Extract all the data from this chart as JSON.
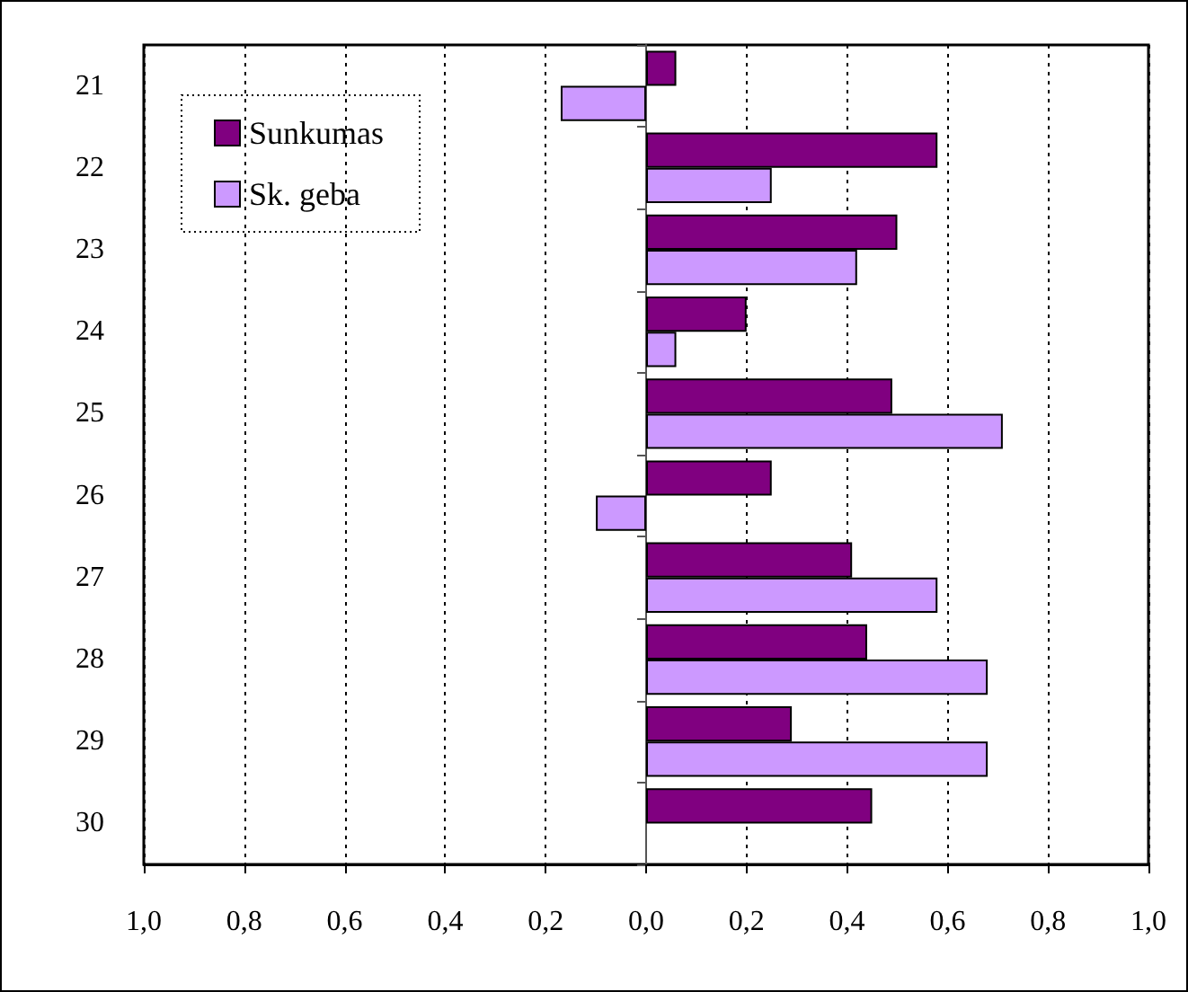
{
  "chart_data": {
    "type": "bar",
    "orientation": "horizontal",
    "categories": [
      "21",
      "22",
      "23",
      "24",
      "25",
      "26",
      "27",
      "28",
      "29",
      "30"
    ],
    "series": [
      {
        "name": "Sunkumas",
        "color": "#800080",
        "values": [
          0.06,
          0.58,
          0.5,
          0.2,
          0.49,
          0.25,
          0.41,
          0.44,
          0.29,
          0.45
        ]
      },
      {
        "name": "Sk. geba",
        "color": "#cc99ff",
        "values": [
          -0.17,
          0.25,
          0.42,
          0.06,
          0.71,
          -0.1,
          0.58,
          0.68,
          0.68,
          null
        ]
      }
    ],
    "xlim": [
      -1,
      1
    ],
    "xticks": [
      {
        "value": -1,
        "label": "1,0"
      },
      {
        "value": -0.8,
        "label": "0,8"
      },
      {
        "value": -0.6,
        "label": "0,6"
      },
      {
        "value": -0.4,
        "label": "0,4"
      },
      {
        "value": -0.2,
        "label": "0,2"
      },
      {
        "value": 0,
        "label": "0,0"
      },
      {
        "value": 0.2,
        "label": "0,2"
      },
      {
        "value": 0.4,
        "label": "0,4"
      },
      {
        "value": 0.6,
        "label": "0,6"
      },
      {
        "value": 0.8,
        "label": "0,8"
      },
      {
        "value": 1,
        "label": "1,0"
      }
    ],
    "grid": "x",
    "legend": "top left"
  }
}
